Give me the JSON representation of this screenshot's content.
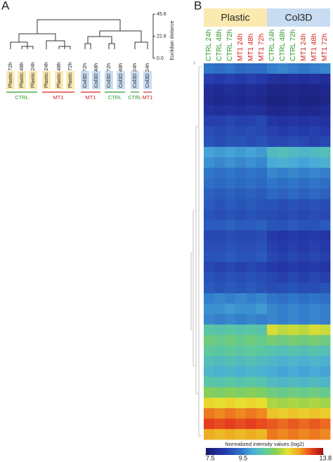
{
  "chart_data": [
    {
      "type": "dendrogram",
      "panel_label": "A",
      "leaves": [
        "Plastic 72h",
        "Plastic 48h",
        "Plastic 24h",
        "Plastic 24h",
        "Plastic 48h",
        "Plastic 72h",
        "Col3D 72h",
        "Col3D 48h",
        "Col3D 72h",
        "Col3D 48h",
        "Col3D 24h",
        "Col3D 24h"
      ],
      "conditions": [
        "CTRL",
        "MT1",
        "MT1",
        "CTRL",
        "CTRL",
        "MT1"
      ],
      "condition_colors": {
        "CTRL": "#2a9a2a",
        "MT1": "#d42020"
      },
      "materials": [
        {
          "label": "Plastic",
          "color": "#fbeab0"
        },
        {
          "label": "Col3D",
          "color": "#c9ddf2"
        }
      ],
      "y_label": "Euclidian distance",
      "ylim": [
        0,
        45.6
      ],
      "yticks": [
        {
          "value": 0,
          "label": "0.0"
        },
        22.8,
        45.6
      ]
    },
    {
      "type": "heatmap",
      "panel_label": "B",
      "groups": [
        {
          "label": "Plastic",
          "color": "#fbeab0"
        },
        {
          "label": "Col3D",
          "color": "#c9ddf2"
        }
      ],
      "columns": [
        {
          "label": "CTRL 24h",
          "color": "#2a9a2a"
        },
        {
          "label": "CTRL 48h",
          "color": "#2a9a2a"
        },
        {
          "label": "CTRL 72h",
          "color": "#2a9a2a"
        },
        {
          "label": "MT1 24h",
          "color": "#d42020"
        },
        {
          "label": "MT1 48h",
          "color": "#d42020"
        },
        {
          "label": "MT1 72h",
          "color": "#d42020"
        },
        {
          "label": "CTRL 24h",
          "color": "#2a9a2a"
        },
        {
          "label": "CTRL 48h",
          "color": "#2a9a2a"
        },
        {
          "label": "CTRL 72h",
          "color": "#2a9a2a"
        },
        {
          "label": "MT1 24h",
          "color": "#d42020"
        },
        {
          "label": "MT1 48h",
          "color": "#d42020"
        },
        {
          "label": "MT1 72h",
          "color": "#d42020"
        }
      ],
      "rows": [
        [
          9.4,
          9.3,
          9.4,
          9.2,
          9.3,
          9.3,
          9.5,
          9.6,
          9.5,
          9.4,
          9.5,
          9.6
        ],
        [
          8.6,
          8.5,
          8.6,
          8.5,
          8.6,
          8.5,
          8.3,
          8.2,
          8.3,
          8.2,
          8.3,
          8.2
        ],
        [
          8.2,
          8.1,
          8.2,
          8.1,
          8.2,
          8.1,
          7.9,
          7.9,
          8.0,
          7.9,
          7.9,
          8.0
        ],
        [
          8.1,
          8.0,
          8.1,
          8.0,
          8.1,
          8.0,
          7.8,
          7.8,
          7.9,
          7.8,
          7.8,
          7.9
        ],
        [
          8.3,
          8.2,
          8.3,
          8.2,
          8.3,
          8.2,
          8.0,
          8.0,
          8.1,
          8.0,
          8.0,
          8.1
        ],
        [
          8.6,
          8.6,
          8.7,
          8.6,
          8.6,
          8.7,
          8.4,
          8.3,
          8.4,
          8.3,
          8.4,
          8.3
        ],
        [
          8.8,
          8.7,
          8.8,
          8.7,
          8.8,
          8.7,
          8.6,
          8.5,
          8.6,
          8.5,
          8.6,
          8.5
        ],
        [
          8.9,
          8.8,
          8.9,
          8.9,
          8.8,
          8.9,
          8.7,
          8.7,
          8.8,
          8.7,
          8.6,
          8.7
        ],
        [
          9.9,
          9.8,
          9.9,
          9.8,
          9.9,
          9.8,
          10.3,
          10.4,
          10.3,
          10.2,
          10.3,
          10.4
        ],
        [
          9.7,
          9.6,
          9.7,
          9.6,
          9.7,
          9.6,
          10.0,
          10.1,
          10.0,
          9.9,
          10.0,
          10.1
        ],
        [
          9.4,
          9.3,
          9.4,
          9.3,
          9.4,
          9.3,
          9.6,
          9.5,
          9.6,
          9.5,
          9.6,
          9.5
        ],
        [
          9.3,
          9.2,
          9.3,
          9.2,
          9.3,
          9.2,
          9.4,
          9.3,
          9.4,
          9.3,
          9.4,
          9.3
        ],
        [
          9.1,
          9.0,
          9.1,
          9.0,
          9.1,
          9.0,
          9.2,
          9.1,
          9.2,
          9.1,
          9.2,
          9.1
        ],
        [
          9.0,
          8.9,
          9.0,
          8.9,
          9.0,
          8.9,
          8.9,
          8.8,
          8.9,
          8.8,
          8.9,
          8.8
        ],
        [
          8.9,
          8.8,
          8.9,
          8.8,
          8.9,
          8.8,
          8.8,
          8.7,
          8.8,
          8.7,
          8.8,
          8.7
        ],
        [
          9.0,
          9.0,
          9.1,
          9.0,
          9.0,
          9.1,
          8.9,
          8.9,
          9.0,
          8.9,
          8.9,
          9.0
        ],
        [
          8.7,
          8.7,
          8.8,
          8.7,
          8.7,
          8.8,
          8.5,
          8.4,
          8.5,
          8.4,
          8.5,
          8.4
        ],
        [
          8.8,
          8.8,
          8.9,
          8.8,
          8.8,
          8.9,
          8.6,
          8.5,
          8.6,
          8.5,
          8.6,
          8.5
        ],
        [
          8.9,
          8.9,
          9.0,
          8.9,
          8.9,
          9.0,
          8.7,
          8.6,
          8.7,
          8.6,
          8.7,
          8.6
        ],
        [
          8.7,
          8.6,
          8.7,
          8.6,
          8.7,
          8.6,
          8.5,
          8.4,
          8.5,
          8.4,
          8.5,
          8.4
        ],
        [
          8.9,
          8.8,
          8.9,
          8.8,
          8.9,
          8.8,
          8.7,
          8.6,
          8.7,
          8.6,
          8.7,
          8.6
        ],
        [
          9.0,
          8.9,
          9.0,
          8.9,
          9.0,
          8.9,
          8.8,
          8.8,
          8.9,
          8.8,
          8.8,
          8.9
        ],
        [
          9.5,
          9.6,
          9.5,
          9.6,
          9.5,
          9.6,
          9.4,
          9.3,
          9.4,
          9.3,
          9.4,
          9.3
        ],
        [
          9.7,
          9.7,
          9.8,
          9.7,
          9.7,
          9.8,
          9.6,
          9.5,
          9.6,
          9.5,
          9.6,
          9.5
        ],
        [
          9.6,
          9.5,
          9.6,
          9.5,
          9.6,
          9.5,
          9.6,
          9.5,
          9.6,
          9.5,
          9.6,
          9.5
        ],
        [
          10.6,
          10.5,
          10.6,
          10.5,
          10.6,
          10.5,
          11.8,
          11.6,
          11.7,
          11.6,
          11.8,
          11.7
        ],
        [
          10.9,
          10.8,
          10.9,
          10.8,
          10.9,
          10.8,
          11.0,
          10.9,
          11.0,
          10.9,
          11.0,
          10.9
        ],
        [
          10.7,
          10.6,
          10.7,
          10.6,
          10.7,
          10.6,
          10.5,
          10.4,
          10.5,
          10.4,
          10.5,
          10.4
        ],
        [
          10.4,
          10.3,
          10.4,
          10.3,
          10.4,
          10.3,
          10.2,
          10.1,
          10.2,
          10.1,
          10.2,
          10.1
        ],
        [
          10.2,
          10.1,
          10.2,
          10.1,
          10.2,
          10.1,
          10.0,
          9.9,
          10.0,
          9.9,
          10.0,
          9.9
        ],
        [
          10.6,
          10.5,
          10.6,
          10.5,
          10.6,
          10.5,
          10.3,
          10.2,
          10.3,
          10.2,
          10.3,
          10.2
        ],
        [
          11.2,
          11.1,
          11.2,
          11.1,
          11.2,
          11.1,
          10.9,
          10.8,
          10.9,
          10.8,
          10.9,
          10.8
        ],
        [
          12.0,
          11.9,
          12.0,
          11.9,
          12.0,
          11.9,
          11.5,
          11.4,
          11.5,
          11.4,
          11.5,
          11.4
        ],
        [
          12.8,
          12.7,
          12.8,
          12.7,
          12.8,
          12.7,
          12.2,
          12.1,
          12.2,
          12.1,
          12.2,
          12.1
        ],
        [
          13.2,
          13.1,
          13.2,
          13.1,
          13.2,
          13.1,
          13.0,
          12.9,
          13.0,
          12.9,
          13.0,
          12.9
        ],
        [
          12.4,
          12.3,
          12.4,
          12.3,
          12.4,
          12.3,
          12.8,
          12.7,
          12.8,
          12.7,
          12.8,
          12.7
        ]
      ],
      "colorbar_label": "Normalized intensity values (log2)",
      "clim": [
        7.5,
        13.8
      ],
      "cticks": [
        7.5,
        9.5,
        13.8
      ]
    }
  ]
}
